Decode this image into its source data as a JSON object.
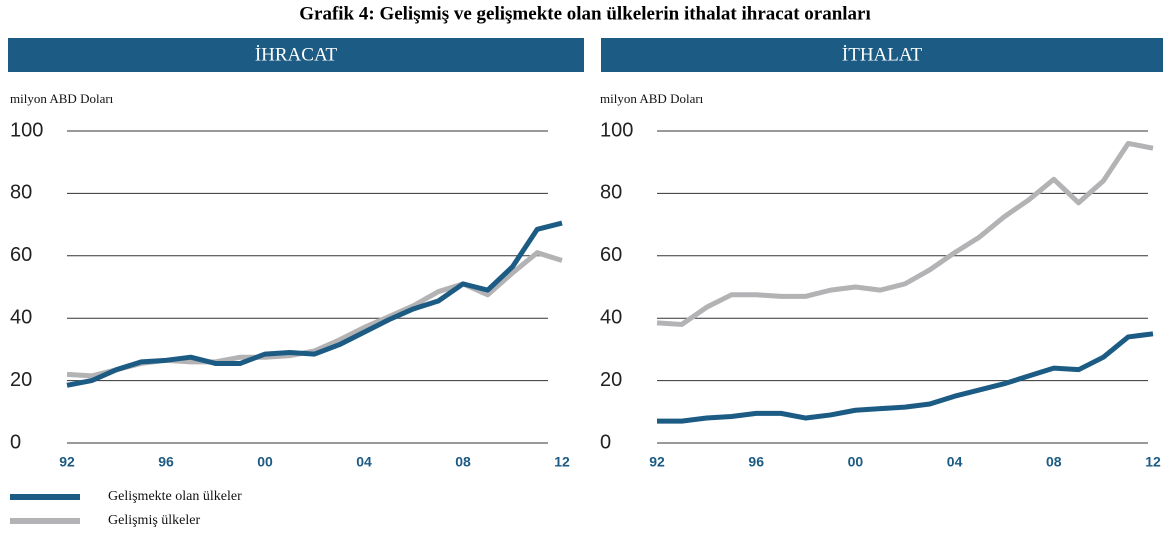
{
  "title": "Grafik 4: Gelişmiş ve gelişmekte olan ülkelerin ithalat ihracat oranları",
  "chart_data": [
    {
      "type": "line",
      "title": "İHRACAT",
      "ylabel": "milyon ABD Doları",
      "categories": [
        "92",
        null,
        null,
        null,
        "96",
        null,
        null,
        null,
        "00",
        null,
        null,
        null,
        "04",
        null,
        null,
        null,
        "08",
        null,
        null,
        null,
        "12"
      ],
      "ylim": [
        0,
        100
      ],
      "yticks": [
        0,
        20,
        40,
        60,
        80,
        100
      ],
      "grid": true,
      "series": [
        {
          "name": "Gelişmekte olan ülkeler",
          "color": "#1c5b84",
          "values": [
            18.5,
            20,
            23.5,
            26,
            26.5,
            27.5,
            25.5,
            25.5,
            28.5,
            29,
            28.5,
            31.5,
            35.5,
            39.5,
            43,
            45.5,
            51,
            49,
            56.5,
            68.5,
            70.5
          ]
        },
        {
          "name": "Gelişmiş ülkeler",
          "color": "#b3b3b5",
          "values": [
            22,
            21.5,
            23.5,
            25.5,
            26.5,
            26,
            26,
            27.5,
            27.5,
            28,
            29.5,
            33,
            37,
            40.5,
            44,
            48.5,
            51,
            47.5,
            54.5,
            61,
            58.5
          ]
        }
      ]
    },
    {
      "type": "line",
      "title": "İTHALAT",
      "ylabel": "milyon ABD Doları",
      "categories": [
        "92",
        null,
        null,
        null,
        "96",
        null,
        null,
        null,
        "00",
        null,
        null,
        null,
        "04",
        null,
        null,
        null,
        "08",
        null,
        null,
        null,
        "12"
      ],
      "ylim": [
        0,
        100
      ],
      "yticks": [
        0,
        20,
        40,
        60,
        80,
        100
      ],
      "grid": true,
      "series": [
        {
          "name": "Gelişmekte olan ülkeler",
          "color": "#1c5b84",
          "values": [
            7,
            7,
            8,
            8.5,
            9.5,
            9.5,
            8,
            9,
            10.5,
            11,
            11.5,
            12.5,
            15,
            17,
            19,
            21.5,
            24,
            23.5,
            27.5,
            34,
            35
          ]
        },
        {
          "name": "Gelişmiş ülkeler",
          "color": "#b3b3b5",
          "values": [
            38.5,
            38,
            43.5,
            47.5,
            47.5,
            47,
            47,
            49,
            50,
            49,
            51,
            55.5,
            61,
            66,
            72.5,
            78,
            84.5,
            77,
            84,
            96,
            94.5
          ]
        }
      ]
    }
  ]
}
